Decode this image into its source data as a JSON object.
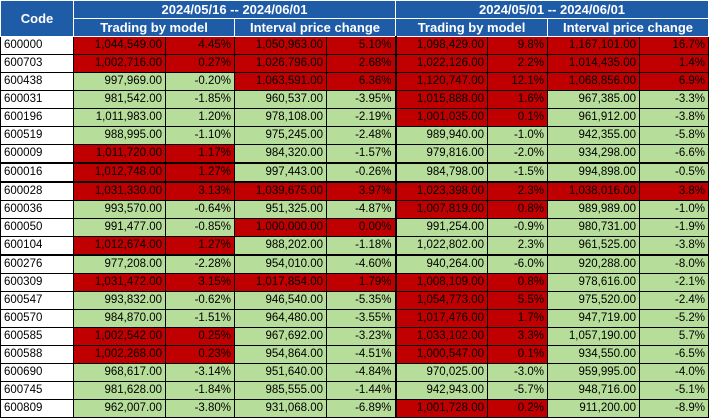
{
  "header": {
    "code_label": "Code",
    "period1": "2024/05/16 -- 2024/06/01",
    "period2": "2024/05/01 -- 2024/06/01",
    "sub1": "Trading by model",
    "sub2": "Interval price change",
    "sub3": "Trading by model",
    "sub4": "Interval price change"
  },
  "colors": {
    "gain": "#b6dd99",
    "loss": "#c00000",
    "header": "#1f5ca8"
  },
  "rows": [
    {
      "code": "600000",
      "v1": "1,044,549.00",
      "p1": "4.45%",
      "v2": "1,050,963.00",
      "p2": "5.10%",
      "v3": "1,098,429.00",
      "p3": "9.8%",
      "v4": "1,167,101.00",
      "p4": "16.7%",
      "c": [
        "r",
        "r",
        "r",
        "r",
        "r",
        "r",
        "r",
        "r"
      ]
    },
    {
      "code": "600703",
      "v1": "1,002,716.00",
      "p1": "0.27%",
      "v2": "1,026,796.00",
      "p2": "2.68%",
      "v3": "1,022,126.00",
      "p3": "2.2%",
      "v4": "1,014,435.00",
      "p4": "1.4%",
      "c": [
        "r",
        "r",
        "r",
        "r",
        "r",
        "r",
        "r",
        "r"
      ]
    },
    {
      "code": "600438",
      "v1": "997,969.00",
      "p1": "-0.20%",
      "v2": "1,063,591.00",
      "p2": "6.36%",
      "v3": "1,120,747.00",
      "p3": "12.1%",
      "v4": "1,068,856.00",
      "p4": "6.9%",
      "c": [
        "g",
        "g",
        "r",
        "r",
        "r",
        "r",
        "r",
        "r"
      ]
    },
    {
      "code": "600031",
      "v1": "981,542.00",
      "p1": "-1.85%",
      "v2": "960,537.00",
      "p2": "-3.95%",
      "v3": "1,015,888.00",
      "p3": "1.6%",
      "v4": "967,385.00",
      "p4": "-3.3%",
      "c": [
        "g",
        "g",
        "g",
        "g",
        "r",
        "r",
        "g",
        "g"
      ]
    },
    {
      "code": "600196",
      "v1": "1,011,983.00",
      "p1": "1.20%",
      "v2": "978,108.00",
      "p2": "-2.19%",
      "v3": "1,001,035.00",
      "p3": "0.1%",
      "v4": "961,912.00",
      "p4": "-3.8%",
      "c": [
        "g",
        "g",
        "g",
        "g",
        "r",
        "r",
        "g",
        "g"
      ]
    },
    {
      "code": "600519",
      "v1": "988,995.00",
      "p1": "-1.10%",
      "v2": "975,245.00",
      "p2": "-2.48%",
      "v3": "989,940.00",
      "p3": "-1.0%",
      "v4": "942,355.00",
      "p4": "-5.8%",
      "c": [
        "g",
        "g",
        "g",
        "g",
        "g",
        "g",
        "g",
        "g"
      ]
    },
    {
      "code": "600009",
      "v1": "1,011,720.00",
      "p1": "1.17%",
      "v2": "984,320.00",
      "p2": "-1.57%",
      "v3": "979,816.00",
      "p3": "-2.0%",
      "v4": "934,298.00",
      "p4": "-6.6%",
      "c": [
        "r",
        "r",
        "g",
        "g",
        "g",
        "g",
        "g",
        "g"
      ]
    },
    {
      "code": "600016",
      "v1": "1,012,748.00",
      "p1": "1.27%",
      "v2": "997,443.00",
      "p2": "-0.26%",
      "v3": "984,798.00",
      "p3": "-1.5%",
      "v4": "994,898.00",
      "p4": "-0.5%",
      "c": [
        "r",
        "r",
        "g",
        "g",
        "g",
        "g",
        "g",
        "g"
      ],
      "thick": true
    },
    {
      "code": "600028",
      "v1": "1,031,330.00",
      "p1": "3.13%",
      "v2": "1,039,675.00",
      "p2": "3.97%",
      "v3": "1,023,398.00",
      "p3": "2.3%",
      "v4": "1,038,016.00",
      "p4": "3.8%",
      "c": [
        "r",
        "r",
        "r",
        "r",
        "r",
        "r",
        "r",
        "r"
      ],
      "thick": true
    },
    {
      "code": "600036",
      "v1": "993,570.00",
      "p1": "-0.64%",
      "v2": "951,325.00",
      "p2": "-4.87%",
      "v3": "1,007,819.00",
      "p3": "0.8%",
      "v4": "989,989.00",
      "p4": "-1.0%",
      "c": [
        "g",
        "g",
        "g",
        "g",
        "r",
        "r",
        "g",
        "g"
      ]
    },
    {
      "code": "600050",
      "v1": "991,477.00",
      "p1": "-0.85%",
      "v2": "1,000,000.00",
      "p2": "0.00%",
      "v3": "991,254.00",
      "p3": "-0.9%",
      "v4": "980,731.00",
      "p4": "-1.9%",
      "c": [
        "g",
        "g",
        "r",
        "r",
        "g",
        "g",
        "g",
        "g"
      ]
    },
    {
      "code": "600104",
      "v1": "1,012,674.00",
      "p1": "1.27%",
      "v2": "988,202.00",
      "p2": "-1.18%",
      "v3": "1,022,802.00",
      "p3": "2.3%",
      "v4": "961,525.00",
      "p4": "-3.8%",
      "c": [
        "r",
        "r",
        "g",
        "g",
        "g",
        "g",
        "g",
        "g"
      ]
    },
    {
      "code": "600276",
      "v1": "977,208.00",
      "p1": "-2.28%",
      "v2": "954,010.00",
      "p2": "-4.60%",
      "v3": "940,264.00",
      "p3": "-6.0%",
      "v4": "920,288.00",
      "p4": "-8.0%",
      "c": [
        "g",
        "g",
        "g",
        "g",
        "g",
        "g",
        "g",
        "g"
      ],
      "thick": true
    },
    {
      "code": "600309",
      "v1": "1,031,472.00",
      "p1": "3.15%",
      "v2": "1,017,854.00",
      "p2": "1.79%",
      "v3": "1,008,109.00",
      "p3": "0.8%",
      "v4": "978,616.00",
      "p4": "-2.1%",
      "c": [
        "r",
        "r",
        "r",
        "r",
        "r",
        "r",
        "g",
        "g"
      ]
    },
    {
      "code": "600547",
      "v1": "993,832.00",
      "p1": "-0.62%",
      "v2": "946,540.00",
      "p2": "-5.35%",
      "v3": "1,054,773.00",
      "p3": "5.5%",
      "v4": "975,520.00",
      "p4": "-2.4%",
      "c": [
        "g",
        "g",
        "g",
        "g",
        "r",
        "r",
        "g",
        "g"
      ]
    },
    {
      "code": "600570",
      "v1": "984,870.00",
      "p1": "-1.51%",
      "v2": "964,480.00",
      "p2": "-3.55%",
      "v3": "1,017,476.00",
      "p3": "1.7%",
      "v4": "947,719.00",
      "p4": "-5.2%",
      "c": [
        "g",
        "g",
        "g",
        "g",
        "r",
        "r",
        "g",
        "g"
      ]
    },
    {
      "code": "600585",
      "v1": "1,002,542.00",
      "p1": "0.25%",
      "v2": "967,692.00",
      "p2": "-3.23%",
      "v3": "1,033,102.00",
      "p3": "3.3%",
      "v4": "1,057,190.00",
      "p4": "5.7%",
      "c": [
        "r",
        "r",
        "g",
        "g",
        "r",
        "r",
        "g",
        "g"
      ]
    },
    {
      "code": "600588",
      "v1": "1,002,268.00",
      "p1": "0.23%",
      "v2": "954,864.00",
      "p2": "-4.51%",
      "v3": "1,000,547.00",
      "p3": "0.1%",
      "v4": "934,550.00",
      "p4": "-6.5%",
      "c": [
        "r",
        "r",
        "g",
        "g",
        "r",
        "r",
        "g",
        "g"
      ]
    },
    {
      "code": "600690",
      "v1": "968,617.00",
      "p1": "-3.14%",
      "v2": "951,640.00",
      "p2": "-4.84%",
      "v3": "970,025.00",
      "p3": "-3.0%",
      "v4": "959,995.00",
      "p4": "-4.0%",
      "c": [
        "g",
        "g",
        "g",
        "g",
        "g",
        "g",
        "g",
        "g"
      ]
    },
    {
      "code": "600745",
      "v1": "981,628.00",
      "p1": "-1.84%",
      "v2": "985,555.00",
      "p2": "-1.44%",
      "v3": "942,943.00",
      "p3": "-5.7%",
      "v4": "948,716.00",
      "p4": "-5.1%",
      "c": [
        "g",
        "g",
        "g",
        "g",
        "g",
        "g",
        "g",
        "g"
      ]
    },
    {
      "code": "600809",
      "v1": "962,007.00",
      "p1": "-3.80%",
      "v2": "931,068.00",
      "p2": "-6.89%",
      "v3": "1,001,728.00",
      "p3": "0.2%",
      "v4": "911,200.00",
      "p4": "-8.9%",
      "c": [
        "g",
        "g",
        "g",
        "g",
        "r",
        "r",
        "g",
        "g"
      ]
    }
  ]
}
